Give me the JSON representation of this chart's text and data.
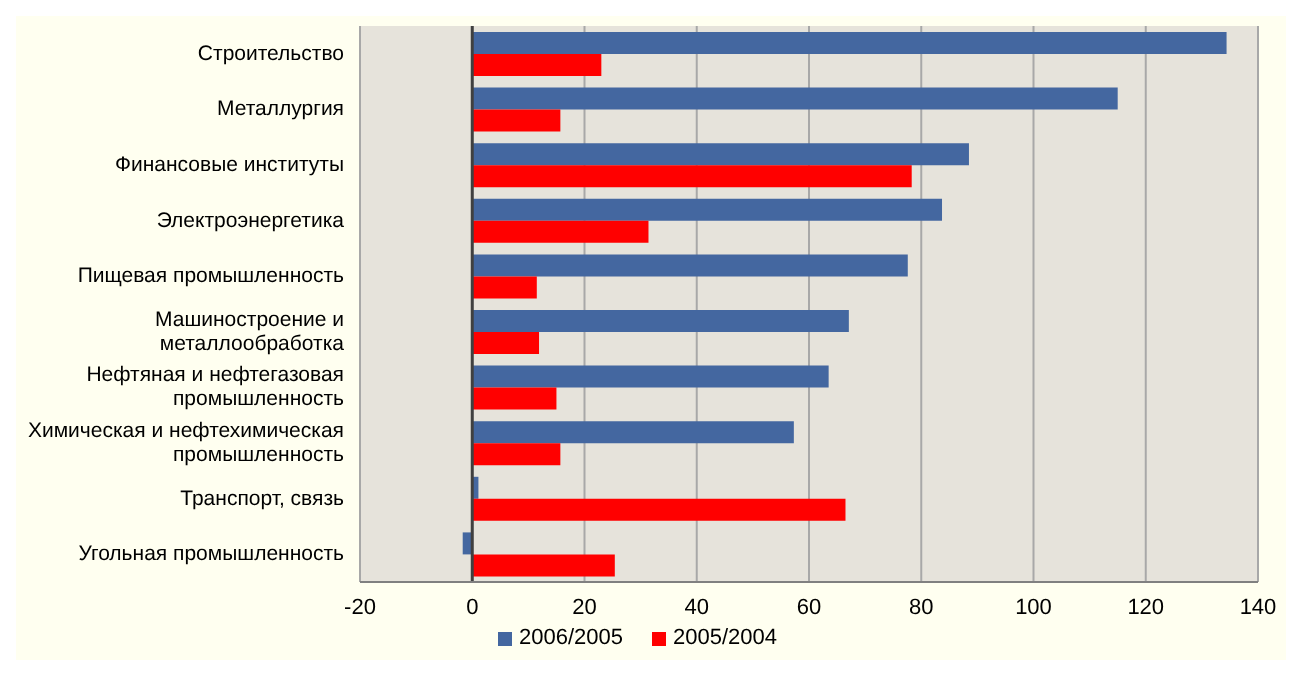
{
  "chart_data": {
    "type": "bar",
    "orientation": "horizontal",
    "categories": [
      "Строительство",
      "Металлургия",
      "Финансовые институты",
      "Электроэнергетика",
      "Пищевая промышленность",
      "Машиностроение и металлообработка",
      "Нефтяная и нефтегазовая промышленность",
      "Химическая и нефтехимическая промышленность",
      "Транспорт, связь",
      "Угольная промышленность"
    ],
    "series": [
      {
        "name": "2006/2005",
        "color": "#4467a0",
        "values": [
          134.4,
          115,
          88.5,
          83.7,
          77.6,
          67.1,
          63.5,
          57.3,
          1.1,
          -1.7
        ]
      },
      {
        "name": "2005/2004",
        "color": "#ff0000",
        "values": [
          23,
          15.7,
          78.3,
          31.4,
          11.5,
          11.9,
          15,
          15.7,
          66.5,
          25.4
        ]
      }
    ],
    "xlim": [
      -20,
      140
    ],
    "xticks": [
      -20,
      0,
      20,
      40,
      60,
      80,
      100,
      120,
      140
    ],
    "grid": "x",
    "legend": "bottom"
  }
}
